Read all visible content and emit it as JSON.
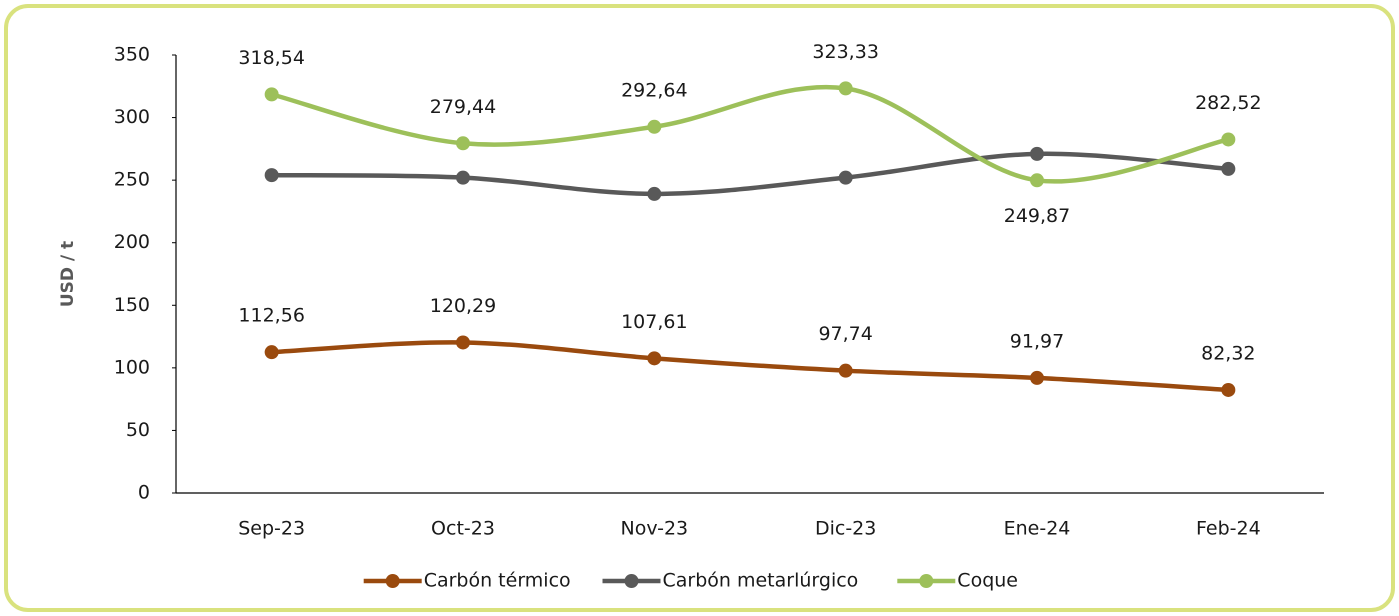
{
  "chart_data": {
    "type": "line",
    "y_label": "USD / t",
    "categories": [
      "Sep-23",
      "Oct-23",
      "Nov-23",
      "Dic-23",
      "Ene-24",
      "Feb-24"
    ],
    "series": [
      {
        "name": "Carbón térmico",
        "color": "#9a4a0e",
        "values": [
          112.56,
          120.29,
          107.61,
          97.74,
          91.97,
          82.32
        ],
        "value_labels": [
          "112,56",
          "120,29",
          "107,61",
          "97,74",
          "91,97",
          "82,32"
        ]
      },
      {
        "name": "Carbón metarlúrgico",
        "color": "#595959",
        "values": [
          254,
          252,
          239,
          252,
          271,
          259
        ]
      },
      {
        "name": "Coque",
        "color": "#9dc05a",
        "values": [
          318.54,
          279.44,
          292.64,
          323.33,
          249.87,
          282.52
        ],
        "value_labels": [
          "318,54",
          "279,44",
          "292,64",
          "323,33",
          "249,87",
          "282,52"
        ]
      }
    ],
    "ylim": [
      0,
      350
    ],
    "yticks": [
      0,
      50,
      100,
      150,
      200,
      250,
      300,
      350
    ],
    "smooth": true,
    "legend": "bottom"
  }
}
